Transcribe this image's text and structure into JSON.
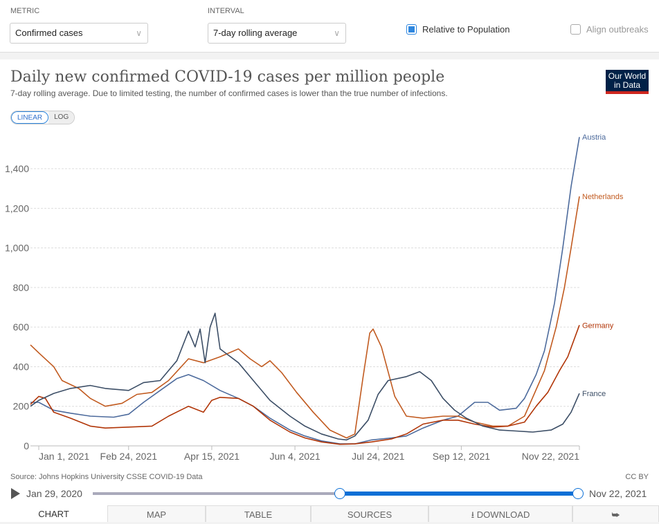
{
  "controls": {
    "metric_label": "METRIC",
    "metric_value": "Confirmed cases",
    "interval_label": "INTERVAL",
    "interval_value": "7-day rolling average",
    "relative_label": "Relative to Population",
    "relative_checked": true,
    "align_label": "Align outbreaks",
    "align_checked": false
  },
  "header": {
    "title": "Daily new confirmed COVID-19 cases per million people",
    "subtitle": "7-day rolling average. Due to limited testing, the number of confirmed cases is lower than the true number of infections.",
    "logo": "Our World in Data"
  },
  "scale_toggle": {
    "linear": "LINEAR",
    "log": "LOG",
    "active": "LINEAR"
  },
  "chart_data": {
    "type": "line",
    "title": "Daily new confirmed COVID-19 cases per million people",
    "xlabel": "",
    "ylabel": "",
    "x_range": [
      "2020-12-27",
      "2021-11-22"
    ],
    "ylim": [
      0,
      1570
    ],
    "grid": true,
    "legend": "right-end labels",
    "y_ticks": [
      {
        "v": 0,
        "l": "0"
      },
      {
        "v": 200,
        "l": "200"
      },
      {
        "v": 400,
        "l": "400"
      },
      {
        "v": 600,
        "l": "600"
      },
      {
        "v": 800,
        "l": "800"
      },
      {
        "v": 1000,
        "l": "1,000"
      },
      {
        "v": 1200,
        "l": "1,200"
      },
      {
        "v": 1400,
        "l": "1,400"
      }
    ],
    "x_ticks": [
      {
        "d": "2021-01-01",
        "l": "Jan 1, 2021"
      },
      {
        "d": "2021-02-24",
        "l": "Feb 24, 2021"
      },
      {
        "d": "2021-04-15",
        "l": "Apr 15, 2021"
      },
      {
        "d": "2021-06-04",
        "l": "Jun 4, 2021"
      },
      {
        "d": "2021-07-24",
        "l": "Jul 24, 2021"
      },
      {
        "d": "2021-09-12",
        "l": "Sep 12, 2021"
      },
      {
        "d": "2021-11-22",
        "l": "Nov 22, 2021"
      }
    ],
    "series": [
      {
        "name": "Austria",
        "color": "#4c6a9c",
        "points": [
          [
            "2020-12-27",
            220
          ],
          [
            "2021-01-01",
            220
          ],
          [
            "2021-01-10",
            180
          ],
          [
            "2021-01-20",
            165
          ],
          [
            "2021-02-01",
            150
          ],
          [
            "2021-02-15",
            145
          ],
          [
            "2021-02-24",
            160
          ],
          [
            "2021-03-05",
            220
          ],
          [
            "2021-03-15",
            280
          ],
          [
            "2021-03-25",
            340
          ],
          [
            "2021-04-01",
            360
          ],
          [
            "2021-04-10",
            330
          ],
          [
            "2021-04-20",
            280
          ],
          [
            "2021-05-01",
            240
          ],
          [
            "2021-05-10",
            200
          ],
          [
            "2021-05-20",
            140
          ],
          [
            "2021-06-01",
            80
          ],
          [
            "2021-06-10",
            50
          ],
          [
            "2021-06-20",
            25
          ],
          [
            "2021-07-01",
            10
          ],
          [
            "2021-07-10",
            10
          ],
          [
            "2021-07-20",
            30
          ],
          [
            "2021-08-01",
            40
          ],
          [
            "2021-08-10",
            50
          ],
          [
            "2021-08-20",
            90
          ],
          [
            "2021-09-01",
            130
          ],
          [
            "2021-09-10",
            150
          ],
          [
            "2021-09-20",
            220
          ],
          [
            "2021-09-28",
            220
          ],
          [
            "2021-10-05",
            180
          ],
          [
            "2021-10-15",
            190
          ],
          [
            "2021-10-20",
            240
          ],
          [
            "2021-10-27",
            360
          ],
          [
            "2021-11-01",
            480
          ],
          [
            "2021-11-07",
            720
          ],
          [
            "2021-11-12",
            1000
          ],
          [
            "2021-11-17",
            1310
          ],
          [
            "2021-11-22",
            1560
          ]
        ]
      },
      {
        "name": "Netherlands",
        "color": "#c15a1f",
        "points": [
          [
            "2020-12-27",
            510
          ],
          [
            "2021-01-01",
            470
          ],
          [
            "2021-01-10",
            400
          ],
          [
            "2021-01-15",
            330
          ],
          [
            "2021-01-25",
            290
          ],
          [
            "2021-02-01",
            240
          ],
          [
            "2021-02-10",
            200
          ],
          [
            "2021-02-20",
            215
          ],
          [
            "2021-03-01",
            260
          ],
          [
            "2021-03-10",
            270
          ],
          [
            "2021-03-20",
            330
          ],
          [
            "2021-04-01",
            440
          ],
          [
            "2021-04-10",
            420
          ],
          [
            "2021-04-20",
            450
          ],
          [
            "2021-05-01",
            490
          ],
          [
            "2021-05-08",
            440
          ],
          [
            "2021-05-15",
            400
          ],
          [
            "2021-05-20",
            430
          ],
          [
            "2021-05-27",
            370
          ],
          [
            "2021-06-05",
            270
          ],
          [
            "2021-06-15",
            170
          ],
          [
            "2021-06-25",
            80
          ],
          [
            "2021-07-05",
            40
          ],
          [
            "2021-07-10",
            60
          ],
          [
            "2021-07-15",
            350
          ],
          [
            "2021-07-19",
            570
          ],
          [
            "2021-07-21",
            590
          ],
          [
            "2021-07-26",
            500
          ],
          [
            "2021-08-03",
            250
          ],
          [
            "2021-08-10",
            150
          ],
          [
            "2021-08-20",
            140
          ],
          [
            "2021-09-01",
            150
          ],
          [
            "2021-09-10",
            150
          ],
          [
            "2021-09-20",
            120
          ],
          [
            "2021-10-01",
            100
          ],
          [
            "2021-10-10",
            100
          ],
          [
            "2021-10-20",
            150
          ],
          [
            "2021-11-01",
            380
          ],
          [
            "2021-11-08",
            600
          ],
          [
            "2021-11-13",
            800
          ],
          [
            "2021-11-17",
            1000
          ],
          [
            "2021-11-22",
            1260
          ]
        ]
      },
      {
        "name": "Germany",
        "color": "#b13507",
        "points": [
          [
            "2020-12-27",
            210
          ],
          [
            "2021-01-01",
            250
          ],
          [
            "2021-01-05",
            240
          ],
          [
            "2021-01-10",
            170
          ],
          [
            "2021-01-20",
            140
          ],
          [
            "2021-02-01",
            100
          ],
          [
            "2021-02-10",
            90
          ],
          [
            "2021-02-24",
            95
          ],
          [
            "2021-03-10",
            100
          ],
          [
            "2021-03-20",
            150
          ],
          [
            "2021-04-01",
            200
          ],
          [
            "2021-04-10",
            170
          ],
          [
            "2021-04-15",
            230
          ],
          [
            "2021-04-20",
            245
          ],
          [
            "2021-05-01",
            240
          ],
          [
            "2021-05-10",
            200
          ],
          [
            "2021-05-20",
            130
          ],
          [
            "2021-06-01",
            70
          ],
          [
            "2021-06-10",
            40
          ],
          [
            "2021-06-20",
            20
          ],
          [
            "2021-07-01",
            8
          ],
          [
            "2021-07-10",
            10
          ],
          [
            "2021-07-20",
            20
          ],
          [
            "2021-08-01",
            35
          ],
          [
            "2021-08-10",
            60
          ],
          [
            "2021-08-20",
            110
          ],
          [
            "2021-09-01",
            130
          ],
          [
            "2021-09-10",
            130
          ],
          [
            "2021-09-20",
            110
          ],
          [
            "2021-10-01",
            95
          ],
          [
            "2021-10-10",
            100
          ],
          [
            "2021-10-20",
            120
          ],
          [
            "2021-10-27",
            200
          ],
          [
            "2021-11-03",
            270
          ],
          [
            "2021-11-10",
            380
          ],
          [
            "2021-11-15",
            450
          ],
          [
            "2021-11-22",
            610
          ]
        ]
      },
      {
        "name": "France",
        "color": "#3c4e66",
        "points": [
          [
            "2020-12-27",
            200
          ],
          [
            "2021-01-01",
            230
          ],
          [
            "2021-01-10",
            265
          ],
          [
            "2021-01-20",
            290
          ],
          [
            "2021-02-01",
            305
          ],
          [
            "2021-02-10",
            290
          ],
          [
            "2021-02-24",
            280
          ],
          [
            "2021-03-05",
            320
          ],
          [
            "2021-03-15",
            330
          ],
          [
            "2021-03-25",
            430
          ],
          [
            "2021-04-01",
            580
          ],
          [
            "2021-04-05",
            500
          ],
          [
            "2021-04-08",
            590
          ],
          [
            "2021-04-11",
            420
          ],
          [
            "2021-04-14",
            600
          ],
          [
            "2021-04-17",
            670
          ],
          [
            "2021-04-20",
            490
          ],
          [
            "2021-05-01",
            420
          ],
          [
            "2021-05-10",
            330
          ],
          [
            "2021-05-20",
            230
          ],
          [
            "2021-06-01",
            150
          ],
          [
            "2021-06-10",
            100
          ],
          [
            "2021-06-20",
            60
          ],
          [
            "2021-06-30",
            35
          ],
          [
            "2021-07-05",
            30
          ],
          [
            "2021-07-10",
            50
          ],
          [
            "2021-07-18",
            130
          ],
          [
            "2021-07-24",
            260
          ],
          [
            "2021-07-30",
            330
          ],
          [
            "2021-08-10",
            350
          ],
          [
            "2021-08-18",
            375
          ],
          [
            "2021-08-25",
            330
          ],
          [
            "2021-09-01",
            240
          ],
          [
            "2021-09-08",
            180
          ],
          [
            "2021-09-15",
            140
          ],
          [
            "2021-09-25",
            100
          ],
          [
            "2021-10-05",
            80
          ],
          [
            "2021-10-15",
            75
          ],
          [
            "2021-10-25",
            70
          ],
          [
            "2021-11-05",
            80
          ],
          [
            "2021-11-12",
            110
          ],
          [
            "2021-11-17",
            170
          ],
          [
            "2021-11-22",
            265
          ]
        ]
      }
    ]
  },
  "footer": {
    "source": "Source: Johns Hopkins University CSSE COVID-19 Data",
    "license": "CC BY",
    "timeline_start": "Jan 29, 2020",
    "timeline_end": "Nov 22, 2021"
  },
  "tabs": [
    "CHART",
    "MAP",
    "TABLE",
    "SOURCES",
    "DOWNLOAD"
  ]
}
